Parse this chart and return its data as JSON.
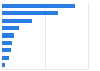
{
  "values": [
    85,
    65,
    35,
    20,
    14,
    12,
    10,
    8,
    3
  ],
  "bar_color": "#2a7de1",
  "background_color": "#ffffff",
  "grid_color": "#e0e0e0",
  "bar_height": 0.55,
  "xlim": [
    0,
    100
  ]
}
